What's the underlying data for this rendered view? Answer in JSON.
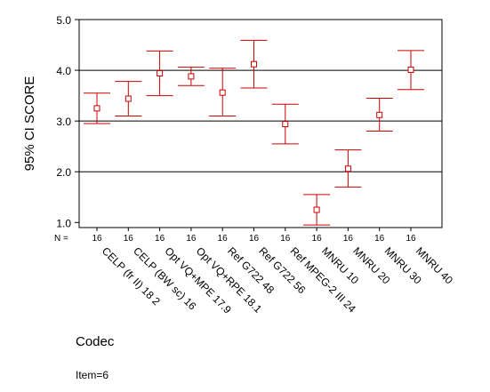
{
  "chart_data": {
    "type": "errorbar",
    "ylabel": "95% CI SCORE",
    "xlabel": "Codec",
    "footnote": "Item=6",
    "n_label": "N =",
    "ylim": [
      0.9,
      5.0
    ],
    "yticks": [
      1.0,
      2.0,
      3.0,
      4.0,
      5.0
    ],
    "ytick_labels": [
      "1.0",
      "2.0",
      "3.0",
      "4.0",
      "5.0"
    ],
    "gridlines_y": [
      2.0,
      3.0,
      4.0
    ],
    "color": "#cc0000",
    "categories": [
      "CELP (fr II) 18 2",
      "CELP (BW sc) 16",
      "Opt VQ+MPE 17.9",
      "Opt VQ+RPE 18.1",
      "Ref G722 48",
      "Ref G722 56",
      "Ref MPEG-2 III 24",
      "MNRU 10",
      "MNRU 20",
      "MNRU 30",
      "MNRU 40"
    ],
    "n": [
      "16",
      "16",
      "16",
      "16",
      "16",
      "16",
      "16",
      "16",
      "16",
      "16",
      "16"
    ],
    "mean": [
      3.25,
      3.44,
      3.94,
      3.88,
      3.56,
      4.12,
      2.94,
      1.25,
      2.06,
      3.12,
      4.01
    ],
    "lower": [
      2.95,
      3.1,
      3.5,
      3.7,
      3.1,
      3.65,
      2.55,
      0.95,
      1.7,
      2.8,
      3.62
    ],
    "upper": [
      3.55,
      3.78,
      4.38,
      4.06,
      4.04,
      4.59,
      3.33,
      1.55,
      2.43,
      3.45,
      4.39
    ]
  }
}
